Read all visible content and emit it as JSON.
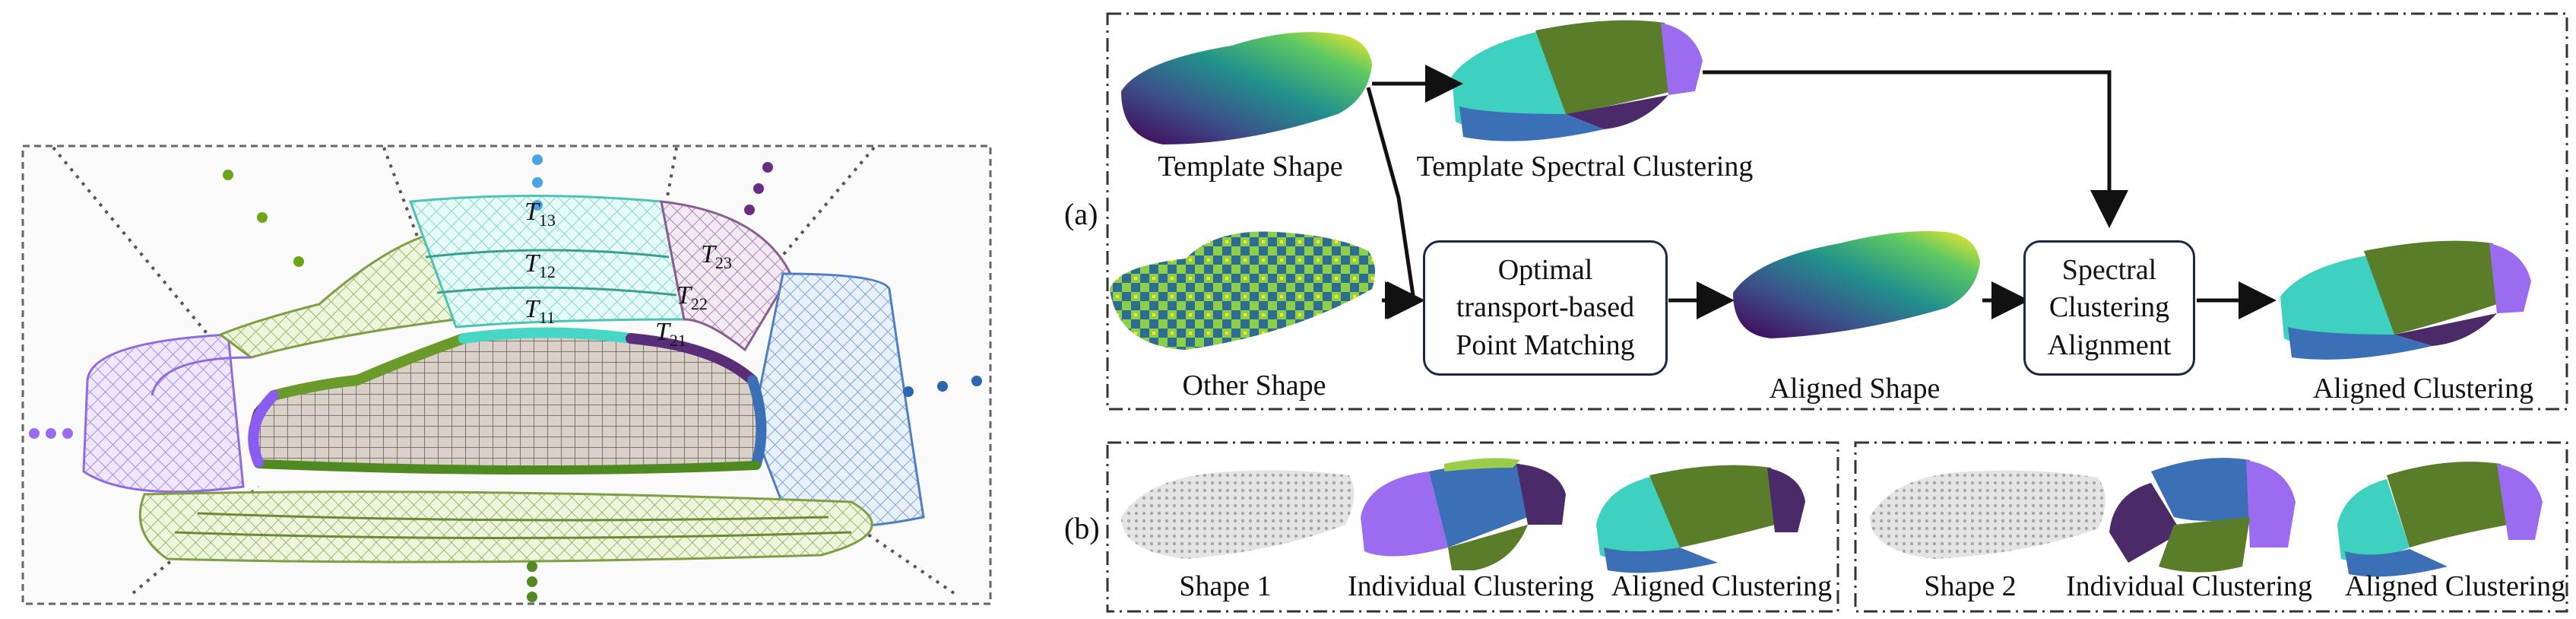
{
  "colors": {
    "viridis_dark": "#440154",
    "viridis_mid": "#21918c",
    "viridis_light": "#fde725",
    "cluster_green": "#5a7d2a",
    "cluster_blue": "#3b6fb6",
    "cluster_purple": "#9b6cf0",
    "cluster_teal": "#3fd1c0",
    "cluster_dark_purple": "#4b2a6a",
    "grey_shape": "#b8b8b8",
    "box_border": "#1b2a44"
  },
  "left_panel": {
    "t13": "13",
    "t12": "12",
    "t11": "11",
    "t23": "23",
    "t22": "22",
    "t21": "21",
    "t_symbol": "T"
  },
  "panel_a": {
    "tag": "(a)",
    "template_shape": "Template Shape",
    "template_spectral": "Template Spectral Clustering",
    "other_shape": "Other Shape",
    "ot_box": "Optimal transport-based Point Matching",
    "aligned_shape": "Aligned Shape",
    "sca_box": "Spectral Clustering Alignment",
    "aligned_clustering": "Aligned Clustering"
  },
  "panel_b": {
    "tag": "(b)",
    "shape1": "Shape 1",
    "individual1": "Individual Clustering",
    "aligned1": "Aligned Clustering",
    "shape2": "Shape 2",
    "individual2": "Individual Clustering",
    "aligned2": "Aligned Clustering"
  }
}
